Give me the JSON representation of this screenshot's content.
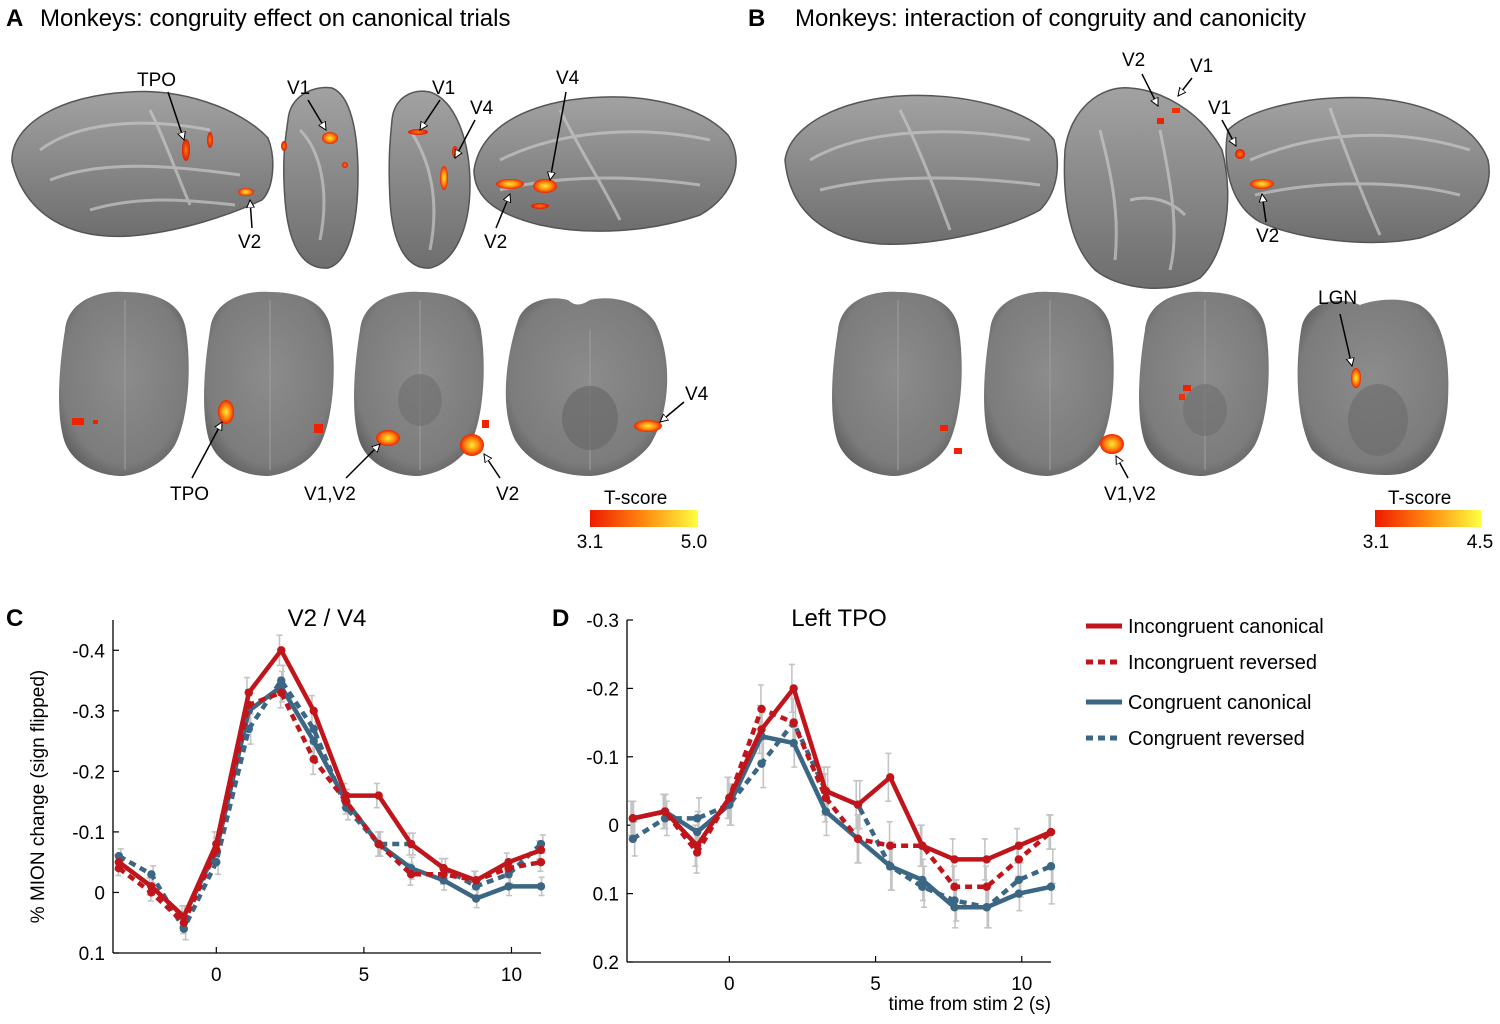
{
  "panels": {
    "a": {
      "letter": "A",
      "title": "Monkeys: congruity effect on canonical trials"
    },
    "b": {
      "letter": "B",
      "title": "Monkeys: interaction of congruity and canonicity"
    },
    "c": {
      "letter": "C"
    },
    "d": {
      "letter": "D"
    }
  },
  "annotations": {
    "a_surface": [
      "TPO",
      "V2",
      "V1",
      "V1",
      "V4",
      "V4",
      "V2"
    ],
    "a_slices": [
      "TPO",
      "V1,V2",
      "V2",
      "V4"
    ],
    "b_surface": [
      "V2",
      "V1",
      "V1",
      "V2"
    ],
    "b_slices": [
      "LGN",
      "V1,V2"
    ]
  },
  "colorbars": {
    "a": {
      "title": "T-score",
      "min_label": "3.1",
      "max_label": "5.0"
    },
    "b": {
      "title": "T-score",
      "min_label": "3.1",
      "max_label": "4.5"
    }
  },
  "colors": {
    "incongruent": "#c0161b",
    "congruent": "#3c6784",
    "error": "#c4c4c4",
    "brain": "#8a8a8a",
    "hot_low": "#ee2200",
    "hot_high": "#ffee30"
  },
  "legend": [
    {
      "label": "Incongruent canonical",
      "series": 0
    },
    {
      "label": "Incongruent reversed",
      "series": 1
    },
    {
      "label": "Congruent canonical",
      "series": 2
    },
    {
      "label": "Congruent reversed",
      "series": 3
    }
  ],
  "chart_data": [
    {
      "type": "line",
      "title": "V2 / V4",
      "xlabel": "",
      "ylabel": "% MION change (sign flipped)",
      "y_reversed": true,
      "xlim": [
        -3.5,
        11
      ],
      "ylim": [
        -0.45,
        0.1
      ],
      "xticks": [
        0,
        5,
        10
      ],
      "xtick_labels": [
        "0",
        "5",
        "10"
      ],
      "yticks": [
        -0.4,
        -0.3,
        -0.2,
        -0.1,
        0,
        0.1
      ],
      "ytick_labels": [
        "-0.4",
        "-0.3",
        "-0.2",
        "-0.1",
        "0",
        "0.1"
      ],
      "x": [
        -3.3,
        -2.2,
        -1.1,
        0,
        1.1,
        2.2,
        3.3,
        4.4,
        5.5,
        6.6,
        7.7,
        8.8,
        9.9,
        11
      ],
      "series": [
        {
          "name": "Incongruent canonical",
          "dashed": false,
          "values": [
            -0.05,
            -0.01,
            0.04,
            -0.08,
            -0.33,
            -0.4,
            -0.3,
            -0.16,
            -0.16,
            -0.08,
            -0.04,
            -0.02,
            -0.05,
            -0.07
          ],
          "err": [
            0.012,
            0.014,
            0.018,
            0.02,
            0.025,
            0.025,
            0.025,
            0.02,
            0.02,
            0.018,
            0.016,
            0.015,
            0.015,
            0.015
          ]
        },
        {
          "name": "Incongruent reversed",
          "dashed": true,
          "values": [
            -0.04,
            0.0,
            0.05,
            -0.07,
            -0.31,
            -0.33,
            -0.22,
            -0.15,
            -0.08,
            -0.03,
            -0.03,
            -0.02,
            -0.04,
            -0.05
          ],
          "err": [
            0.012,
            0.014,
            0.018,
            0.02,
            0.025,
            0.025,
            0.025,
            0.02,
            0.02,
            0.018,
            0.016,
            0.015,
            0.015,
            0.015
          ]
        },
        {
          "name": "Congruent canonical",
          "dashed": false,
          "values": [
            -0.05,
            -0.01,
            0.04,
            -0.07,
            -0.3,
            -0.34,
            -0.25,
            -0.15,
            -0.08,
            -0.04,
            -0.02,
            0.01,
            -0.01,
            -0.01
          ],
          "err": [
            0.012,
            0.014,
            0.018,
            0.02,
            0.025,
            0.025,
            0.025,
            0.02,
            0.02,
            0.018,
            0.016,
            0.015,
            0.015,
            0.015
          ]
        },
        {
          "name": "Congruent reversed",
          "dashed": true,
          "values": [
            -0.06,
            -0.03,
            0.06,
            -0.05,
            -0.27,
            -0.35,
            -0.27,
            -0.14,
            -0.08,
            -0.08,
            -0.04,
            -0.01,
            -0.03,
            -0.08
          ],
          "err": [
            0.012,
            0.014,
            0.018,
            0.02,
            0.025,
            0.025,
            0.025,
            0.02,
            0.02,
            0.018,
            0.016,
            0.015,
            0.015,
            0.015
          ]
        }
      ]
    },
    {
      "type": "line",
      "title": "Left TPO",
      "xlabel": "time from stim 2 (s)",
      "ylabel": "",
      "y_reversed": true,
      "xlim": [
        -3.5,
        11
      ],
      "ylim": [
        -0.3,
        0.2
      ],
      "xticks": [
        0,
        5,
        10
      ],
      "xtick_labels": [
        "0",
        "5",
        "10"
      ],
      "yticks": [
        -0.3,
        -0.2,
        -0.1,
        0,
        0.1,
        0.2
      ],
      "ytick_labels": [
        "-0.3",
        "-0.2",
        "-0.1",
        "0",
        "0.1",
        "0.2"
      ],
      "x": [
        -3.3,
        -2.2,
        -1.1,
        0,
        1.1,
        2.2,
        3.3,
        4.4,
        5.5,
        6.6,
        7.7,
        8.8,
        9.9,
        11
      ],
      "series": [
        {
          "name": "Incongruent canonical",
          "dashed": false,
          "values": [
            -0.01,
            -0.02,
            0.03,
            -0.04,
            -0.14,
            -0.2,
            -0.05,
            -0.03,
            -0.07,
            0.03,
            0.05,
            0.05,
            0.03,
            0.01
          ],
          "err": [
            0.025,
            0.025,
            0.03,
            0.03,
            0.035,
            0.035,
            0.035,
            0.035,
            0.035,
            0.03,
            0.03,
            0.03,
            0.025,
            0.025
          ]
        },
        {
          "name": "Incongruent reversed",
          "dashed": true,
          "values": [
            -0.01,
            -0.02,
            0.04,
            -0.04,
            -0.17,
            -0.15,
            -0.04,
            0.02,
            0.03,
            0.03,
            0.09,
            0.09,
            0.05,
            0.01
          ],
          "err": [
            0.025,
            0.025,
            0.03,
            0.03,
            0.035,
            0.035,
            0.035,
            0.035,
            0.035,
            0.03,
            0.03,
            0.03,
            0.025,
            0.025
          ]
        },
        {
          "name": "Congruent canonical",
          "dashed": false,
          "values": [
            -0.01,
            -0.02,
            0.01,
            -0.03,
            -0.13,
            -0.12,
            -0.02,
            0.02,
            0.06,
            0.08,
            0.12,
            0.12,
            0.1,
            0.09
          ],
          "err": [
            0.025,
            0.025,
            0.03,
            0.03,
            0.035,
            0.035,
            0.035,
            0.035,
            0.035,
            0.03,
            0.03,
            0.03,
            0.025,
            0.025
          ]
        },
        {
          "name": "Congruent reversed",
          "dashed": true,
          "values": [
            0.02,
            -0.01,
            -0.01,
            -0.03,
            -0.09,
            -0.15,
            -0.05,
            -0.03,
            0.06,
            0.09,
            0.11,
            0.12,
            0.08,
            0.06
          ],
          "err": [
            0.025,
            0.025,
            0.03,
            0.03,
            0.035,
            0.035,
            0.035,
            0.035,
            0.035,
            0.03,
            0.03,
            0.03,
            0.025,
            0.025
          ]
        }
      ]
    }
  ]
}
